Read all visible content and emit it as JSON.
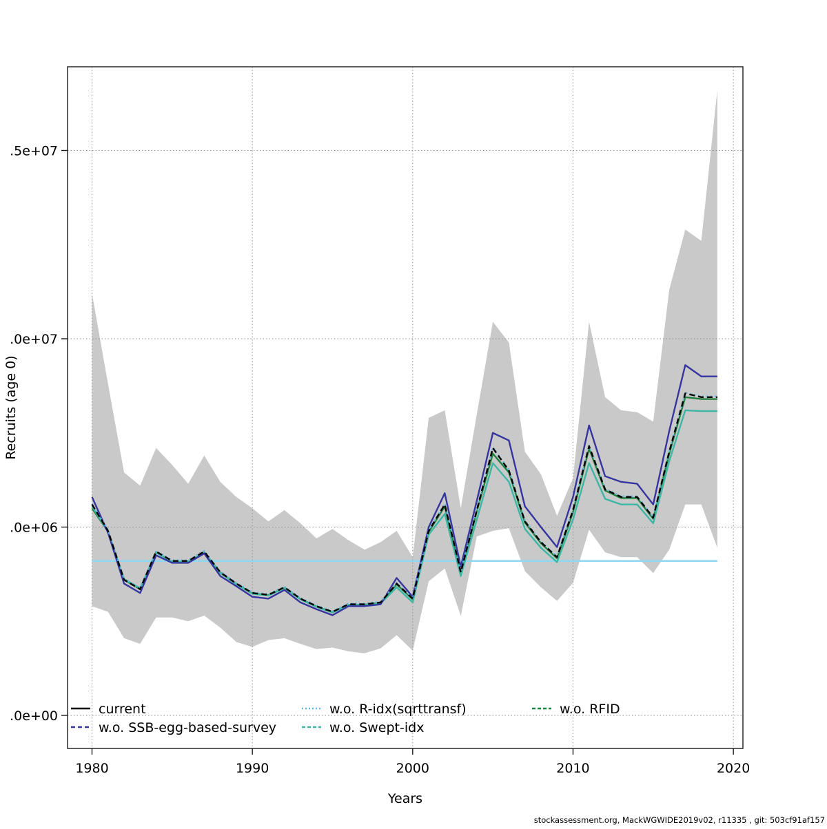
{
  "footer": "stockassessment.org, MackWGWIDE2019v02, r11335 , git: 503cf91af157",
  "axes": {
    "xlabel": "Years",
    "ylabel": "Recruits (age 0)",
    "x_ticks": [
      {
        "year": 1980,
        "label": "1980"
      },
      {
        "year": 1990,
        "label": "1990"
      },
      {
        "year": 2000,
        "label": "2000"
      },
      {
        "year": 2010,
        "label": "2010"
      },
      {
        "year": 2020,
        "label": "2020"
      }
    ],
    "y_ticks": [
      {
        "value": 0,
        "label": ".0e+00"
      },
      {
        "value": 5,
        "label": ".0e+06"
      },
      {
        "value": 10,
        "label": ".0e+07"
      },
      {
        "value": 15,
        "label": ".5e+07"
      }
    ]
  },
  "colors": {
    "band": "#C9C9C9",
    "grid": "#8C8C8C",
    "axis": "#1a1a1a",
    "reference_line": "#92D7EE",
    "text": "#000000"
  },
  "chart_data": {
    "type": "line",
    "title": "",
    "xlabel": "Years",
    "ylabel": "Recruits (age 0)",
    "value_unit": 1000000,
    "xlim": [
      1978.5,
      2020.6
    ],
    "ylim_millions": [
      0,
      16.9
    ],
    "grid": "dotted",
    "legend_position": "bottom-inside",
    "x": [
      1980,
      1981,
      1982,
      1983,
      1984,
      1985,
      1986,
      1987,
      1988,
      1989,
      1990,
      1991,
      1992,
      1993,
      1994,
      1995,
      1996,
      1997,
      1998,
      1999,
      2000,
      2001,
      2002,
      2003,
      2004,
      2005,
      2006,
      2007,
      2008,
      2009,
      2010,
      2011,
      2012,
      2013,
      2014,
      2015,
      2016,
      2017,
      2018,
      2019
    ],
    "reference_line_value_millions": 4.1,
    "band": {
      "name": "confidence-band-current",
      "upper_millions": [
        11.2,
        8.8,
        6.45,
        6.1,
        7.1,
        6.65,
        6.15,
        6.9,
        6.2,
        5.8,
        5.5,
        5.15,
        5.45,
        5.1,
        4.7,
        4.95,
        4.65,
        4.4,
        4.6,
        4.9,
        4.2,
        7.9,
        8.1,
        5.5,
        8.0,
        10.45,
        9.9,
        7.0,
        6.4,
        5.3,
        6.3,
        10.45,
        8.45,
        8.1,
        8.05,
        7.8,
        11.3,
        12.9,
        12.6,
        16.6
      ],
      "lower_millions": [
        2.9,
        2.75,
        2.05,
        1.9,
        2.6,
        2.6,
        2.5,
        2.65,
        2.33,
        1.95,
        1.82,
        2.0,
        2.05,
        1.9,
        1.76,
        1.8,
        1.7,
        1.65,
        1.78,
        2.13,
        1.72,
        3.56,
        3.9,
        2.64,
        4.75,
        4.9,
        4.97,
        3.83,
        3.4,
        3.04,
        3.52,
        4.93,
        4.33,
        4.2,
        4.2,
        3.78,
        4.4,
        5.6,
        5.6,
        4.45
      ]
    },
    "series": [
      {
        "key": "rfid",
        "label": "w.o. RFID",
        "color": "#20813E",
        "plot_dash": "none",
        "legend_dash": "5 3",
        "z": 1,
        "values_millions": [
          5.5,
          4.88,
          3.6,
          3.35,
          4.33,
          4.08,
          4.08,
          4.33,
          3.79,
          3.49,
          3.24,
          3.19,
          3.39,
          3.09,
          2.89,
          2.74,
          2.94,
          2.94,
          2.99,
          3.48,
          3.08,
          4.87,
          5.55,
          3.78,
          5.42,
          6.95,
          6.45,
          5.12,
          4.57,
          4.17,
          5.4,
          7.08,
          5.97,
          5.77,
          5.77,
          5.22,
          6.95,
          8.45,
          8.4,
          8.4
        ]
      },
      {
        "key": "swept",
        "label": "w.o. Swept-idx",
        "color": "#3DB6A4",
        "plot_dash": "none",
        "legend_dash": "5 3",
        "z": 2,
        "values_millions": [
          5.55,
          4.88,
          3.62,
          3.38,
          4.32,
          4.08,
          4.08,
          4.33,
          3.78,
          3.48,
          3.23,
          3.18,
          3.38,
          3.08,
          2.88,
          2.73,
          2.93,
          2.93,
          2.97,
          3.4,
          3.0,
          4.8,
          5.35,
          3.7,
          5.2,
          6.7,
          6.2,
          4.95,
          4.45,
          4.07,
          5.2,
          6.7,
          5.75,
          5.6,
          5.6,
          5.1,
          6.75,
          8.1,
          8.08,
          8.08
        ]
      },
      {
        "key": "ssb",
        "label": "w.o. SSB-egg-based-survey",
        "color": "#36349E",
        "plot_dash": "none",
        "legend_dash": "6 4",
        "z": 3,
        "values_millions": [
          5.8,
          4.85,
          3.5,
          3.25,
          4.25,
          4.05,
          4.05,
          4.3,
          3.7,
          3.43,
          3.15,
          3.1,
          3.33,
          3.0,
          2.82,
          2.66,
          2.9,
          2.9,
          2.95,
          3.65,
          3.15,
          5.0,
          5.9,
          3.95,
          5.7,
          7.5,
          7.3,
          5.55,
          5.0,
          4.47,
          5.8,
          7.7,
          6.35,
          6.2,
          6.15,
          5.6,
          7.55,
          9.3,
          9.0,
          9.0
        ]
      },
      {
        "key": "ridx",
        "label": "w.o. R-idx(sqrttransf)",
        "color": "#5FB7E0",
        "plot_dash": "2 4",
        "legend_dash": "2 3",
        "z": 4,
        "values_millions": [
          5.62,
          4.92,
          3.62,
          3.37,
          4.37,
          4.12,
          4.12,
          4.37,
          3.82,
          3.52,
          3.27,
          3.22,
          3.42,
          3.12,
          2.92,
          2.77,
          2.97,
          2.97,
          3.02,
          3.52,
          3.12,
          4.92,
          5.62,
          3.82,
          5.47,
          7.12,
          6.52,
          5.17,
          4.62,
          4.22,
          5.47,
          7.17,
          6.02,
          5.82,
          5.82,
          5.27,
          7.02,
          8.57,
          8.47,
          8.47
        ]
      },
      {
        "key": "current",
        "label": "current",
        "color": "#000000",
        "plot_dash": "8 5",
        "legend_dash": "none",
        "z": 5,
        "values_millions": [
          5.6,
          4.9,
          3.6,
          3.35,
          4.35,
          4.1,
          4.1,
          4.35,
          3.8,
          3.5,
          3.25,
          3.2,
          3.4,
          3.1,
          2.9,
          2.75,
          2.95,
          2.95,
          3.0,
          3.5,
          3.1,
          4.9,
          5.6,
          3.8,
          5.45,
          7.1,
          6.5,
          5.15,
          4.6,
          4.2,
          5.45,
          7.15,
          6.0,
          5.8,
          5.8,
          5.25,
          7.0,
          8.55,
          8.45,
          8.45
        ]
      }
    ],
    "legend_columns": [
      [
        "current",
        "ssb"
      ],
      [
        "ridx",
        "swept"
      ],
      [
        "rfid"
      ]
    ]
  }
}
